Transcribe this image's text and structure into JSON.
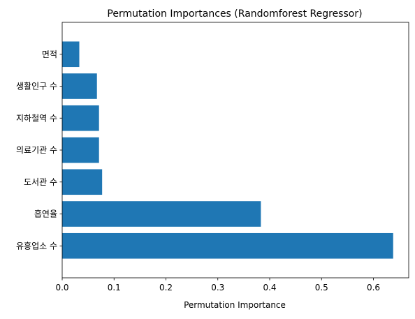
{
  "chart_data": {
    "type": "bar",
    "orientation": "horizontal",
    "title": "Permutation Importances (Randomforest Regressor)",
    "xlabel": "Permutation Importance",
    "ylabel": "",
    "categories": [
      "유흥업소 수",
      "흡연율",
      "도서관 수",
      "의료기관 수",
      "지하철역 수",
      "생활인구 수",
      "면적"
    ],
    "values": [
      0.638,
      0.383,
      0.077,
      0.071,
      0.071,
      0.067,
      0.033
    ],
    "xlim": [
      0,
      0.668
    ],
    "xticks": [
      0.0,
      0.1,
      0.2,
      0.3,
      0.4,
      0.5,
      0.6
    ],
    "xtick_labels": [
      "0.0",
      "0.1",
      "0.2",
      "0.3",
      "0.4",
      "0.5",
      "0.6"
    ],
    "bar_color": "#1f77b4",
    "grid": false
  }
}
